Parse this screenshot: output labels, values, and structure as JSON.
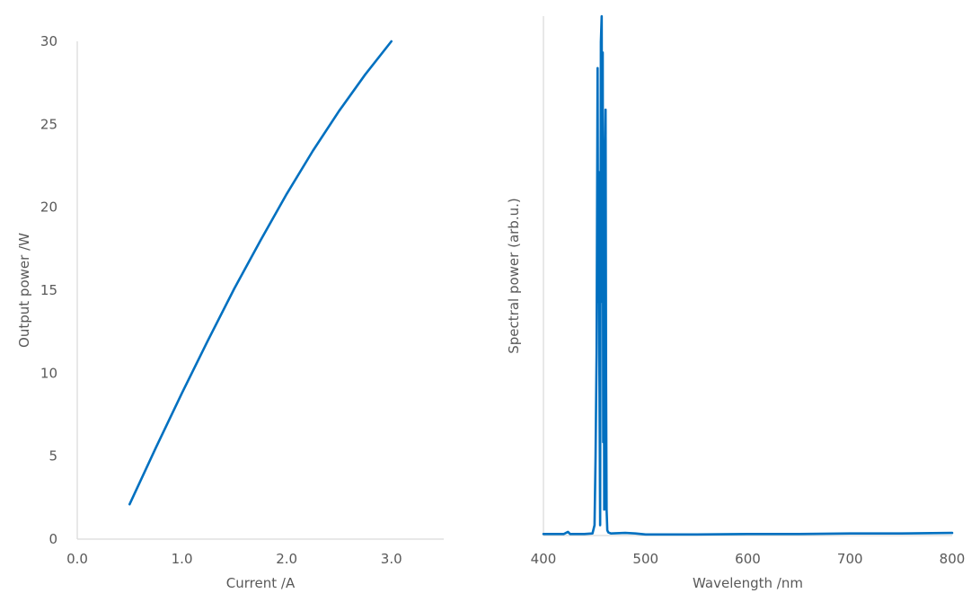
{
  "chart_data": [
    {
      "type": "line",
      "title": "",
      "xlabel": "Current /A",
      "ylabel": "Output power /W",
      "xlim": [
        0.0,
        3.5
      ],
      "ylim": [
        0,
        30
      ],
      "xticks": [
        "0.0",
        "1.0",
        "2.0",
        "3.0"
      ],
      "xtick_values": [
        0.0,
        1.0,
        2.0,
        3.0
      ],
      "yticks": [
        "0",
        "5",
        "10",
        "15",
        "20",
        "25",
        "30"
      ],
      "ytick_values": [
        0,
        5,
        10,
        15,
        20,
        25,
        30
      ],
      "grid": false,
      "color": "#0070c0",
      "series": [
        {
          "x": [
            0.5,
            0.75,
            1.0,
            1.25,
            1.5,
            1.75,
            2.0,
            2.25,
            2.5,
            2.75,
            3.0
          ],
          "y": [
            2.1,
            5.5,
            8.8,
            12.0,
            15.1,
            18.0,
            20.8,
            23.4,
            25.8,
            28.0,
            30.0
          ]
        }
      ]
    },
    {
      "type": "line",
      "title": "",
      "xlabel": "Wavelength /nm",
      "ylabel": "Spectral power (arb.u.)",
      "xlim": [
        400,
        800
      ],
      "ylim": [
        0,
        1
      ],
      "xticks": [
        "400",
        "500",
        "600",
        "700",
        "800"
      ],
      "xtick_values": [
        400,
        500,
        600,
        700,
        800
      ],
      "yticks": [],
      "grid": false,
      "color": "#0070c0",
      "series": [
        {
          "x": [
            400,
            420,
            424,
            426,
            440,
            448,
            450,
            451,
            452,
            453,
            453.5,
            454,
            454.8,
            455.5,
            456.2,
            457,
            457.5,
            458,
            458.5,
            459,
            459.5,
            460,
            460.8,
            461.3,
            461.8,
            462.5,
            463.5,
            466,
            480,
            490,
            500,
            550,
            600,
            650,
            700,
            750,
            800
          ],
          "y": [
            0.003,
            0.003,
            0.007,
            0.003,
            0.003,
            0.004,
            0.02,
            0.15,
            0.35,
            0.9,
            0.45,
            0.7,
            0.3,
            0.02,
            0.95,
            1.0,
            0.45,
            0.93,
            0.18,
            0.6,
            0.05,
            0.7,
            0.82,
            0.3,
            0.05,
            0.01,
            0.006,
            0.004,
            0.005,
            0.004,
            0.002,
            0.002,
            0.003,
            0.003,
            0.004,
            0.004,
            0.005
          ]
        }
      ]
    }
  ]
}
